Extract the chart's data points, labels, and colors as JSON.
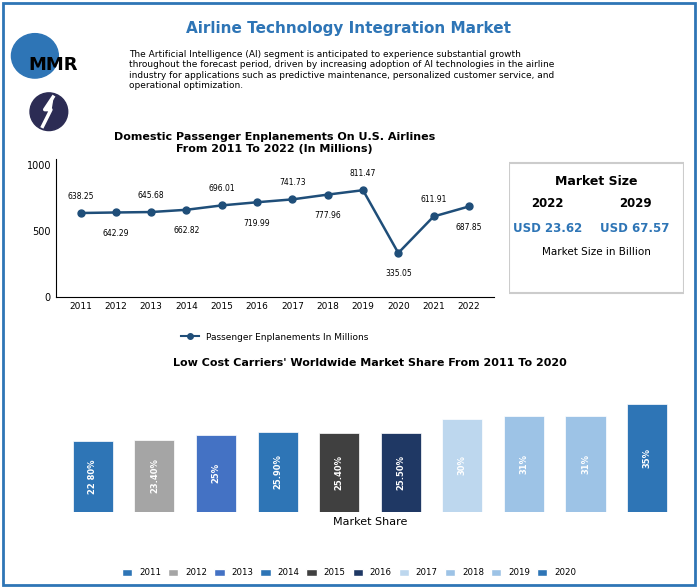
{
  "title": "Airline Technology Integration Market",
  "header_text": "The Artificial Intelligence (AI) segment is anticipated to experience substantial growth\nthroughout the forecast period, driven by increasing adoption of AI technologies in the airline\nindustry for applications such as predictive maintenance, personalized customer service, and\noperational optimization.",
  "line_chart_title": "Domestic Passenger Enplanements On U.S. Airlines\nFrom 2011 To 2022 (In Millions)",
  "line_years": [
    2011,
    2012,
    2013,
    2014,
    2015,
    2016,
    2017,
    2018,
    2019,
    2020,
    2021,
    2022
  ],
  "line_values": [
    638.25,
    642.29,
    645.68,
    662.82,
    696.01,
    719.99,
    741.73,
    777.96,
    811.47,
    335.05,
    611.91,
    687.85
  ],
  "line_label": "Passenger Enplanements In Millions",
  "line_color": "#1f4e79",
  "market_size_title": "Market Size",
  "market_year1": "2022",
  "market_year2": "2029",
  "market_val1": "USD 23.62",
  "market_val2": "USD 67.57",
  "market_sub": "Market Size in Billion",
  "market_color": "#2e75b6",
  "bar_chart_title": "Low Cost Carriers' Worldwide Market Share From 2011 To 2020",
  "bar_categories": [
    "2011",
    "2012",
    "2013",
    "2014",
    "2015",
    "2016",
    "2017",
    "2018",
    "2019",
    "2020"
  ],
  "bar_values": [
    22.8,
    23.4,
    25.0,
    25.9,
    25.4,
    25.5,
    30.0,
    31.0,
    31.0,
    35.0
  ],
  "bar_labels": [
    "22 80%",
    "23.40%",
    "25%",
    "25.90%",
    "25.40%",
    "25.50%",
    "30%",
    "31%",
    "31%",
    "35%"
  ],
  "bar_colors": [
    "#2e75b6",
    "#a5a5a5",
    "#4472c4",
    "#2e75b6",
    "#404040",
    "#1f3864",
    "#bdd7ee",
    "#9dc3e6",
    "#9dc3e6",
    "#2e75b6"
  ],
  "bar_xlabel": "Market Share",
  "legend_colors": [
    "#2e75b6",
    "#a5a5a5",
    "#4472c4",
    "#2e75b6",
    "#404040",
    "#1f3864",
    "#bdd7ee",
    "#9dc3e6",
    "#9dc3e6",
    "#2e75b6"
  ],
  "legend_labels": [
    "2011",
    "2012",
    "2013",
    "2014",
    "2015",
    "2016",
    "2017",
    "2018",
    "2019",
    "2020"
  ],
  "bg_color": "#ffffff",
  "border_color": "#2e75b6",
  "title_color": "#2e75b6"
}
